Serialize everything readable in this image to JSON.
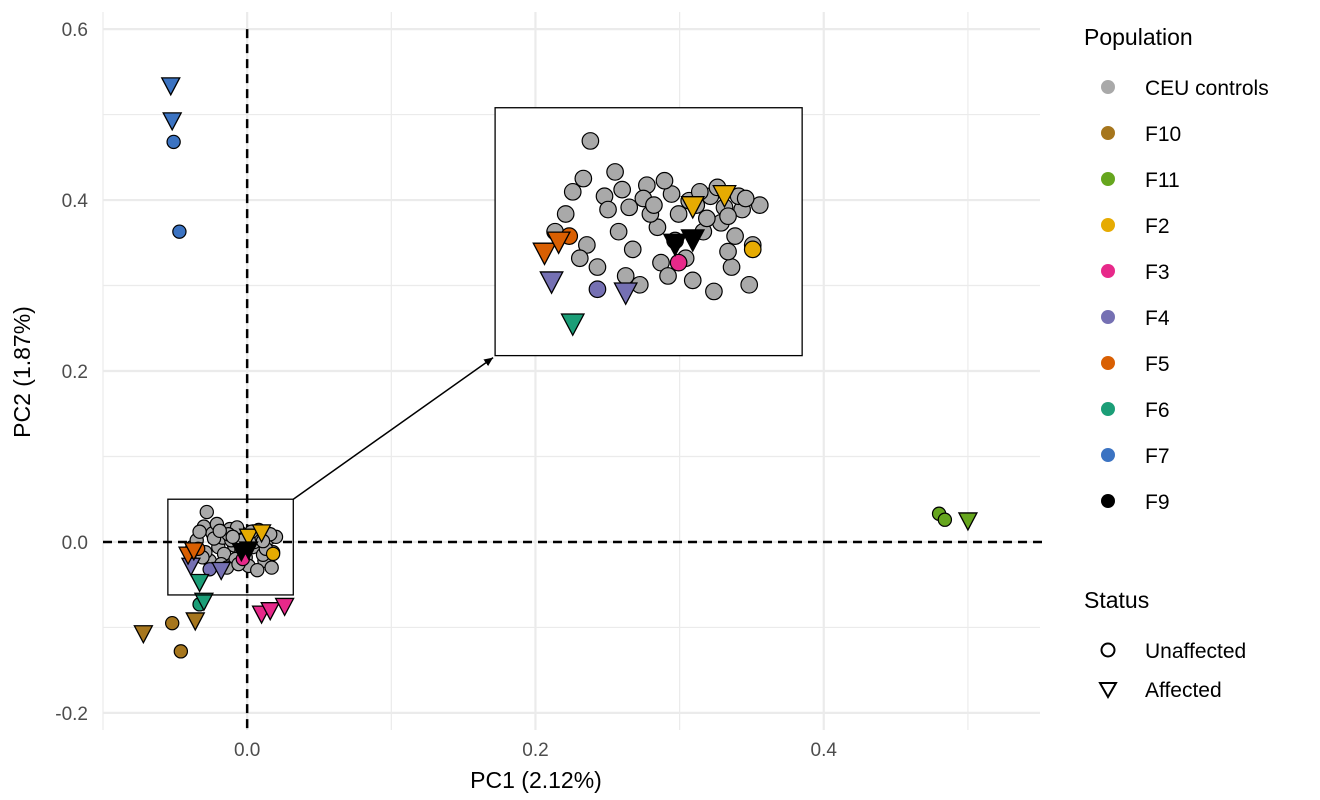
{
  "chart_data": {
    "type": "scatter",
    "xlabel": "PC1 (2.12%)",
    "ylabel": "PC2 (1.87%)",
    "xlim": [
      -0.1,
      0.55
    ],
    "ylim": [
      -0.22,
      0.62
    ],
    "x_ticks": [
      0.0,
      0.2,
      0.4
    ],
    "x_tick_labels": [
      "0.0",
      "0.2",
      "0.4"
    ],
    "y_ticks": [
      -0.2,
      0.0,
      0.2,
      0.4,
      0.6
    ],
    "y_tick_labels": [
      "-0.2",
      "0.0",
      "0.2",
      "0.4",
      "0.6"
    ],
    "grid": true,
    "reference_lines": [
      {
        "axis": "x",
        "value": 0.0,
        "style": "dashed"
      },
      {
        "axis": "y",
        "value": 0.0,
        "style": "dashed"
      }
    ],
    "legend": {
      "placement": "right",
      "population_title": "Population",
      "status_title": "Status",
      "status": [
        {
          "label": "Unaffected",
          "shape": "circle"
        },
        {
          "label": "Affected",
          "shape": "triangle-down"
        }
      ]
    },
    "zoom_inset": {
      "source_xlim": [
        -0.055,
        0.032
      ],
      "source_ylim": [
        -0.062,
        0.05
      ],
      "target_xlim": [
        0.172,
        0.385
      ],
      "target_ylim": [
        0.218,
        0.508
      ]
    },
    "series": [
      {
        "name": "CEU controls",
        "color": "#A9A9A9",
        "points": [
          {
            "x": -0.028,
            "y": 0.035,
            "status": "Unaffected"
          },
          {
            "x": -0.03,
            "y": 0.018,
            "status": "Unaffected"
          },
          {
            "x": -0.024,
            "y": 0.01,
            "status": "Unaffected"
          },
          {
            "x": -0.02,
            "y": -0.006,
            "status": "Unaffected"
          },
          {
            "x": -0.017,
            "y": 0.005,
            "status": "Unaffected"
          },
          {
            "x": -0.012,
            "y": 0.015,
            "status": "Unaffected"
          },
          {
            "x": -0.009,
            "y": -0.004,
            "status": "Unaffected"
          },
          {
            "x": -0.005,
            "y": 0.011,
            "status": "Unaffected"
          },
          {
            "x": -0.001,
            "y": -0.018,
            "status": "Unaffected"
          },
          {
            "x": 0.002,
            "y": 0.006,
            "status": "Unaffected"
          },
          {
            "x": 0.006,
            "y": 0.01,
            "status": "Unaffected"
          },
          {
            "x": 0.009,
            "y": -0.002,
            "status": "Unaffected"
          },
          {
            "x": 0.012,
            "y": -0.022,
            "status": "Unaffected"
          },
          {
            "x": 0.015,
            "y": 0.004,
            "status": "Unaffected"
          },
          {
            "x": 0.018,
            "y": -0.012,
            "status": "Unaffected"
          },
          {
            "x": 0.02,
            "y": 0.006,
            "status": "Unaffected"
          },
          {
            "x": 0.017,
            "y": -0.03,
            "status": "Unaffected"
          },
          {
            "x": -0.038,
            "y": -0.006,
            "status": "Unaffected"
          },
          {
            "x": -0.035,
            "y": 0.002,
            "status": "Unaffected"
          },
          {
            "x": -0.026,
            "y": -0.022,
            "status": "Unaffected"
          },
          {
            "x": -0.021,
            "y": 0.021,
            "status": "Unaffected"
          },
          {
            "x": -0.016,
            "y": -0.014,
            "status": "Unaffected"
          },
          {
            "x": -0.011,
            "y": 0.002,
            "status": "Unaffected"
          },
          {
            "x": -0.007,
            "y": 0.017,
            "status": "Unaffected"
          },
          {
            "x": -0.004,
            "y": -0.01,
            "status": "Unaffected"
          },
          {
            "x": 0.0,
            "y": 0.008,
            "status": "Unaffected"
          },
          {
            "x": 0.004,
            "y": -0.006,
            "status": "Unaffected"
          },
          {
            "x": 0.008,
            "y": 0.014,
            "status": "Unaffected"
          },
          {
            "x": 0.011,
            "y": -0.015,
            "status": "Unaffected"
          },
          {
            "x": 0.014,
            "y": 0.01,
            "status": "Unaffected"
          },
          {
            "x": -0.029,
            "y": -0.012,
            "status": "Unaffected"
          },
          {
            "x": -0.023,
            "y": 0.004,
            "status": "Unaffected"
          },
          {
            "x": -0.018,
            "y": -0.026,
            "status": "Unaffected"
          },
          {
            "x": -0.013,
            "y": 0.009,
            "status": "Unaffected"
          },
          {
            "x": -0.008,
            "y": -0.02,
            "status": "Unaffected"
          },
          {
            "x": -0.003,
            "y": 0.002,
            "status": "Unaffected"
          },
          {
            "x": 0.001,
            "y": -0.028,
            "status": "Unaffected"
          },
          {
            "x": 0.005,
            "y": 0.0,
            "status": "Unaffected"
          },
          {
            "x": 0.01,
            "y": 0.005,
            "status": "Unaffected"
          },
          {
            "x": 0.013,
            "y": -0.008,
            "status": "Unaffected"
          },
          {
            "x": -0.033,
            "y": 0.012,
            "status": "Unaffected"
          },
          {
            "x": -0.031,
            "y": -0.018,
            "status": "Unaffected"
          },
          {
            "x": -0.014,
            "y": -0.03,
            "status": "Unaffected"
          },
          {
            "x": 0.007,
            "y": -0.033,
            "status": "Unaffected"
          },
          {
            "x": 0.016,
            "y": 0.009,
            "status": "Unaffected"
          },
          {
            "x": -0.006,
            "y": -0.026,
            "status": "Unaffected"
          },
          {
            "x": 0.003,
            "y": 0.012,
            "status": "Unaffected"
          },
          {
            "x": -0.019,
            "y": 0.013,
            "status": "Unaffected"
          },
          {
            "x": 0.011,
            "y": 0.001,
            "status": "Unaffected"
          },
          {
            "x": -0.01,
            "y": 0.006,
            "status": "Unaffected"
          }
        ]
      },
      {
        "name": "F10",
        "color": "#A6761D",
        "points": [
          {
            "x": -0.052,
            "y": -0.095,
            "status": "Unaffected"
          },
          {
            "x": -0.046,
            "y": -0.128,
            "status": "Unaffected"
          },
          {
            "x": -0.072,
            "y": -0.108,
            "status": "Affected"
          },
          {
            "x": -0.036,
            "y": -0.093,
            "status": "Affected"
          }
        ]
      },
      {
        "name": "F11",
        "color": "#66A61E",
        "points": [
          {
            "x": 0.48,
            "y": 0.033,
            "status": "Unaffected"
          },
          {
            "x": 0.484,
            "y": 0.026,
            "status": "Unaffected"
          },
          {
            "x": 0.5,
            "y": 0.024,
            "status": "Affected"
          }
        ]
      },
      {
        "name": "F2",
        "color": "#E6AB02",
        "points": [
          {
            "x": 0.018,
            "y": -0.014,
            "status": "Unaffected"
          },
          {
            "x": 0.001,
            "y": 0.005,
            "status": "Affected"
          },
          {
            "x": 0.01,
            "y": 0.01,
            "status": "Affected"
          }
        ]
      },
      {
        "name": "F3",
        "color": "#E7298A",
        "points": [
          {
            "x": -0.003,
            "y": -0.02,
            "status": "Unaffected"
          },
          {
            "x": 0.01,
            "y": -0.085,
            "status": "Affected"
          },
          {
            "x": 0.016,
            "y": -0.081,
            "status": "Affected"
          },
          {
            "x": 0.026,
            "y": -0.076,
            "status": "Affected"
          }
        ]
      },
      {
        "name": "F4",
        "color": "#7570B3",
        "points": [
          {
            "x": -0.026,
            "y": -0.032,
            "status": "Unaffected"
          },
          {
            "x": -0.039,
            "y": -0.029,
            "status": "Affected"
          },
          {
            "x": -0.018,
            "y": -0.034,
            "status": "Affected"
          }
        ]
      },
      {
        "name": "F5",
        "color": "#D95F02",
        "points": [
          {
            "x": -0.034,
            "y": -0.008,
            "status": "Unaffected"
          },
          {
            "x": -0.041,
            "y": -0.016,
            "status": "Affected"
          },
          {
            "x": -0.037,
            "y": -0.011,
            "status": "Affected"
          }
        ]
      },
      {
        "name": "F6",
        "color": "#1B9E77",
        "points": [
          {
            "x": -0.033,
            "y": -0.073,
            "status": "Unaffected"
          },
          {
            "x": -0.033,
            "y": -0.048,
            "status": "Affected"
          },
          {
            "x": -0.03,
            "y": -0.07,
            "status": "Affected"
          }
        ]
      },
      {
        "name": "F7",
        "color": "#3B73C2",
        "points": [
          {
            "x": -0.051,
            "y": 0.468,
            "status": "Unaffected"
          },
          {
            "x": -0.047,
            "y": 0.363,
            "status": "Unaffected"
          },
          {
            "x": -0.053,
            "y": 0.533,
            "status": "Affected"
          },
          {
            "x": -0.052,
            "y": 0.492,
            "status": "Affected"
          }
        ]
      },
      {
        "name": "F9",
        "color": "#000000",
        "points": [
          {
            "x": -0.004,
            "y": -0.012,
            "status": "Affected"
          },
          {
            "x": 0.001,
            "y": -0.01,
            "status": "Affected"
          }
        ]
      }
    ]
  }
}
